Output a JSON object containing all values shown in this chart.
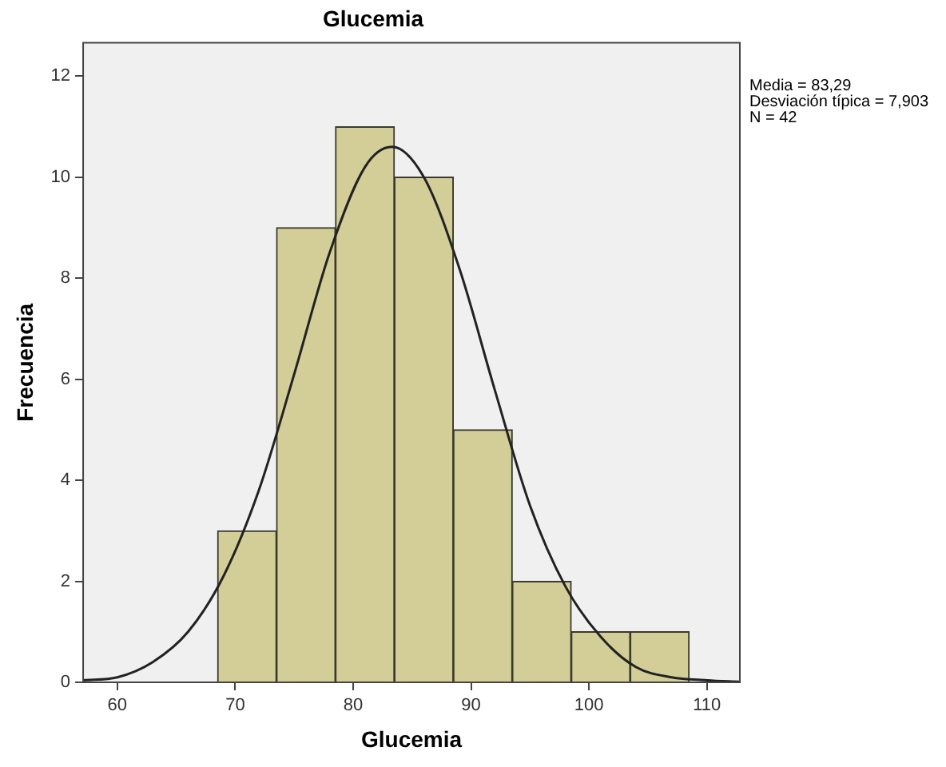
{
  "chart_data": {
    "type": "histogram",
    "title": "Glucemia",
    "xlabel": "Glucemia",
    "ylabel": "Frecuencia",
    "bins": [
      68.5,
      73.5,
      78.5,
      83.5,
      88.5,
      93.5,
      98.5,
      103.5,
      108.5
    ],
    "values": [
      3,
      9,
      11,
      10,
      5,
      2,
      1,
      1
    ],
    "color": "#d3ce98",
    "series": [
      {
        "type": "line",
        "color": "#222222",
        "x": [
          57.1,
          60,
          63,
          66,
          69,
          72,
          75,
          78,
          81,
          83.3,
          86,
          89,
          92,
          95,
          98,
          101,
          104,
          107,
          110,
          112.8
        ],
        "values": [
          0.04,
          0.1,
          0.4,
          1.0,
          2.1,
          3.8,
          6.1,
          8.5,
          10.2,
          10.6,
          10.0,
          8.2,
          5.8,
          3.5,
          1.9,
          0.9,
          0.3,
          0.1,
          0.04,
          0.01
        ]
      }
    ],
    "xlim": [
      57.1,
      112.8
    ],
    "xticks": [
      60,
      70,
      80,
      90,
      100,
      110
    ],
    "ylim": [
      0,
      12.66
    ],
    "yticks": [
      0,
      2,
      4,
      6,
      8,
      10,
      12
    ],
    "grid": false,
    "legend": false,
    "marker": "none",
    "annotations": [
      "Media = 83,29",
      "Desviación típica = 7,903",
      "N = 42"
    ]
  }
}
